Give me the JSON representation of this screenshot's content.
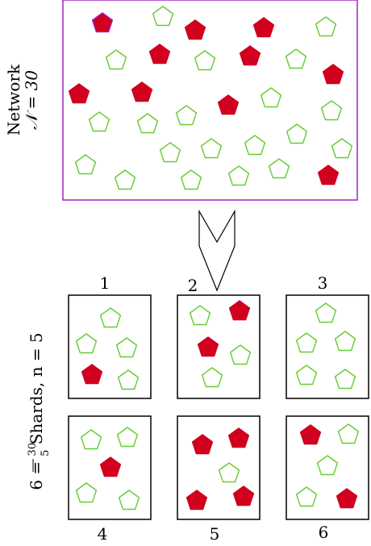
{
  "network": {
    "label_line1": "Network",
    "label_line2": "𝒩 = 30",
    "border_color": "#a020c8"
  },
  "shards": {
    "side_label_prefix": "6 = ",
    "side_label_frac_num": "30",
    "side_label_frac_den": "5",
    "side_label_suffix": " Shards, n = 5",
    "items": [
      {
        "number": "1"
      },
      {
        "number": "2"
      },
      {
        "number": "3"
      },
      {
        "number": "4"
      },
      {
        "number": "5"
      },
      {
        "number": "6"
      }
    ]
  },
  "colors": {
    "honest": "#66cc33",
    "malicious": "#d0001e",
    "box_border": "#000000"
  }
}
